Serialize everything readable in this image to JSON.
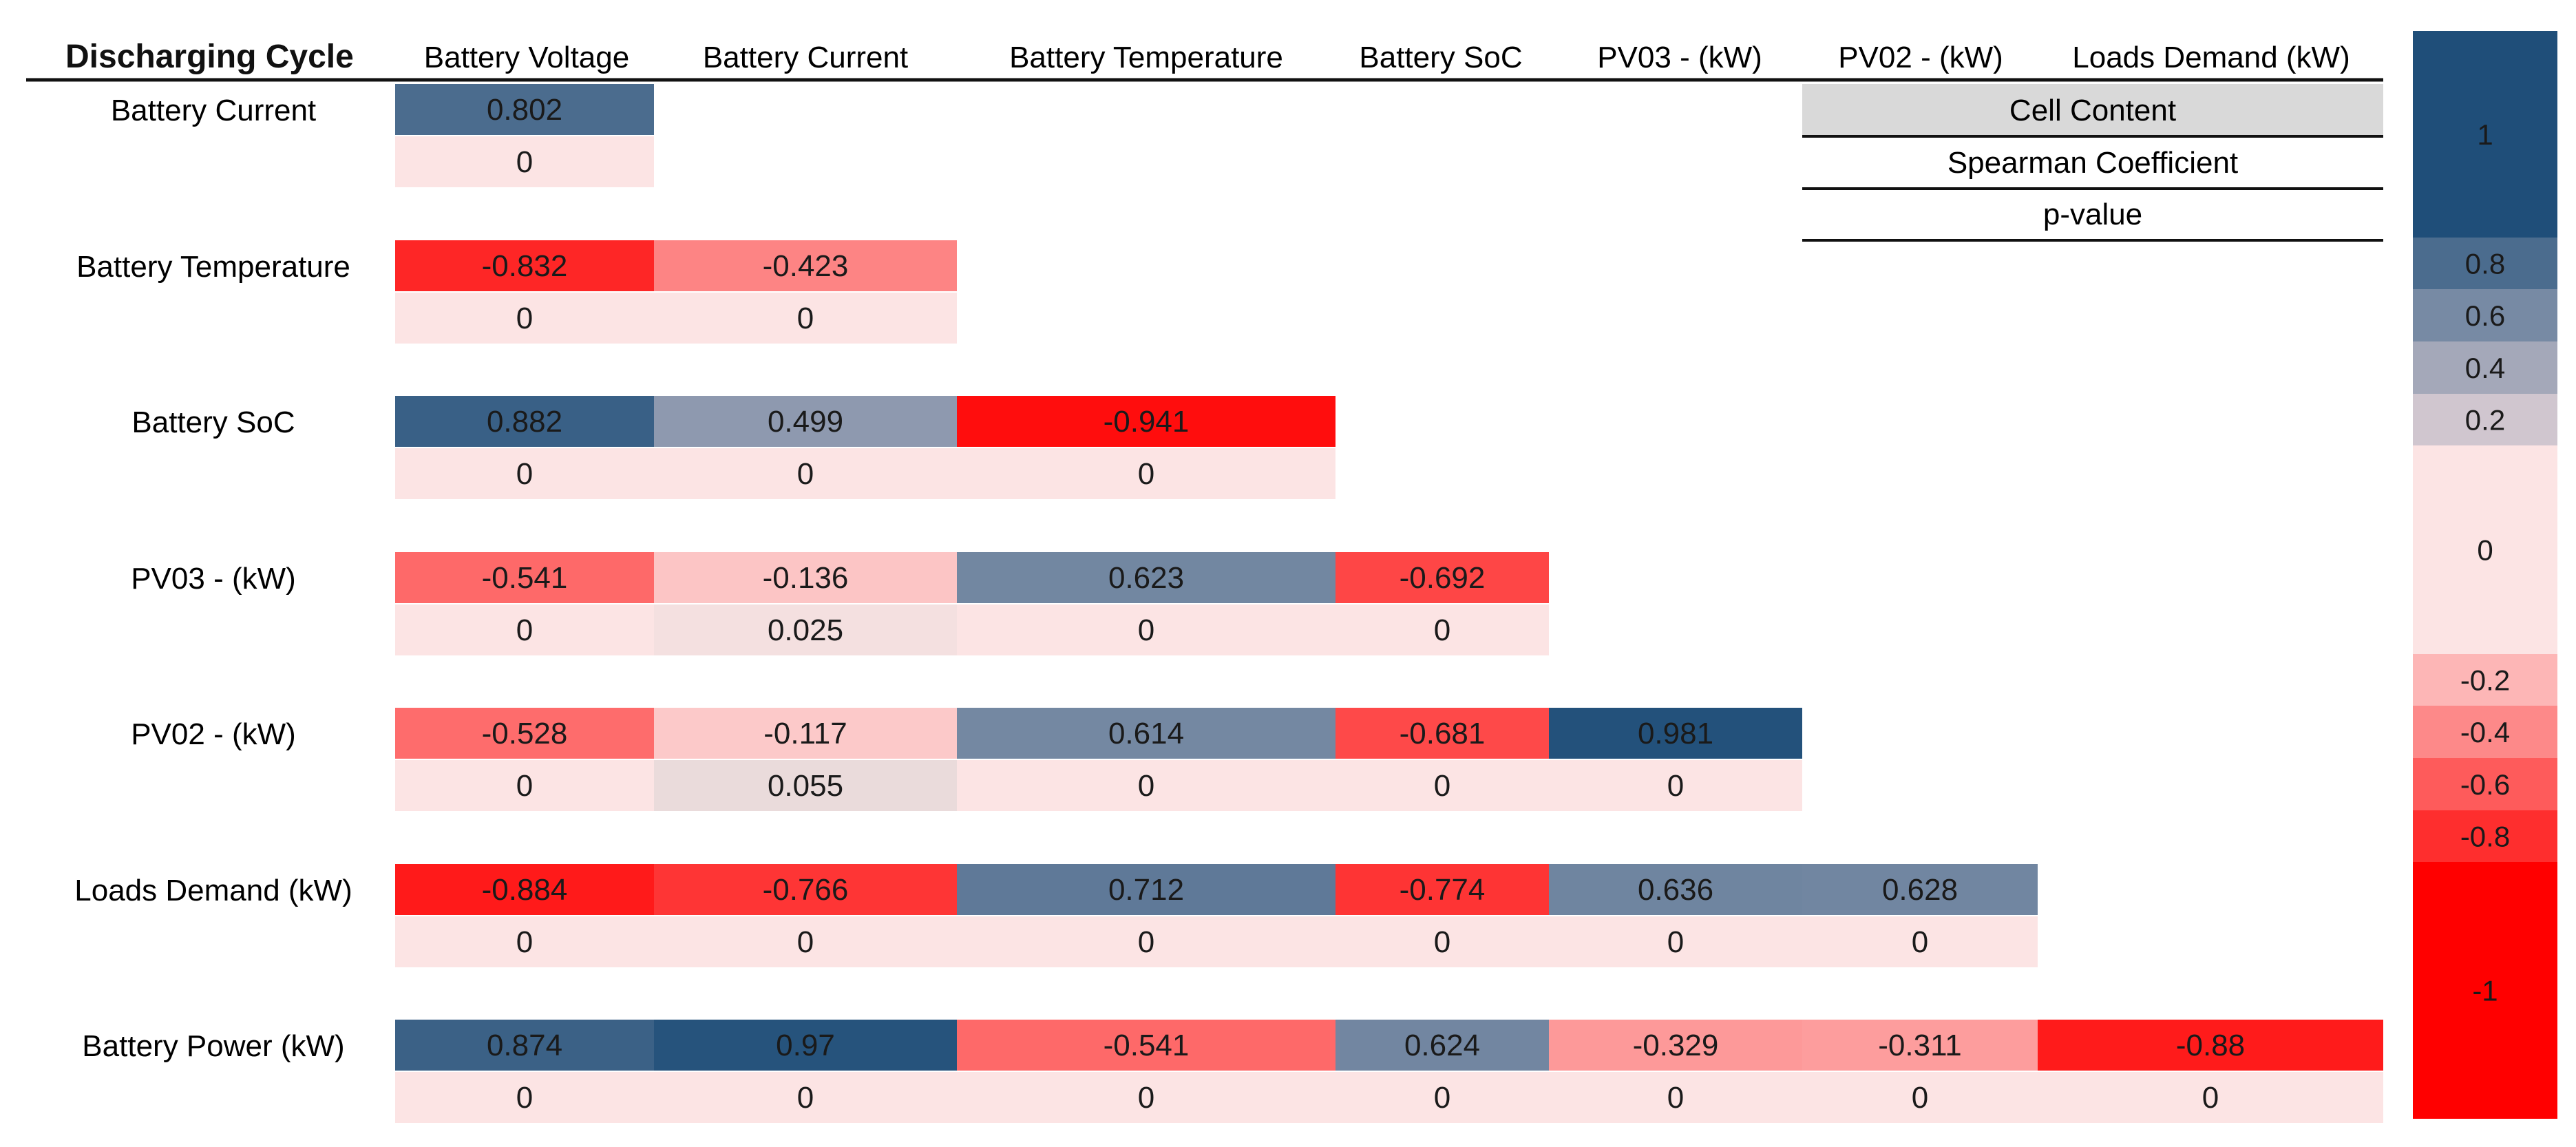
{
  "chart_data": {
    "type": "heatmap",
    "title": "Discharging Cycle",
    "columns": [
      "Battery Voltage",
      "Battery Current",
      "Battery Temperature",
      "Battery SoC",
      "PV03 - (kW)",
      "PV02 -  (kW)",
      "Loads Demand (kW)"
    ],
    "rows": [
      {
        "label": "Battery Current",
        "coefficients": [
          0.802
        ],
        "p_values": [
          "0"
        ]
      },
      {
        "label": "Battery Temperature",
        "coefficients": [
          -0.832,
          -0.423
        ],
        "p_values": [
          "0",
          "0"
        ]
      },
      {
        "label": "Battery SoC",
        "coefficients": [
          0.882,
          0.499,
          -0.941
        ],
        "p_values": [
          "0",
          "0",
          "0"
        ]
      },
      {
        "label": "PV03 - (kW)",
        "coefficients": [
          -0.541,
          -0.136,
          0.623,
          -0.692
        ],
        "p_values": [
          "0",
          "0.025",
          "0",
          "0"
        ]
      },
      {
        "label": "PV02 -  (kW)",
        "coefficients": [
          -0.528,
          -0.117,
          0.614,
          -0.681,
          0.981
        ],
        "p_values": [
          "0",
          "0.055",
          "0",
          "0",
          "0"
        ]
      },
      {
        "label": "Loads Demand (kW)",
        "coefficients": [
          -0.884,
          -0.766,
          0.712,
          -0.774,
          0.636,
          0.628
        ],
        "p_values": [
          "0",
          "0",
          "0",
          "0",
          "0",
          "0"
        ]
      },
      {
        "label": "Battery Power (kW)",
        "coefficients": [
          0.874,
          0.97,
          -0.541,
          0.624,
          -0.329,
          -0.311,
          -0.88
        ],
        "p_values": [
          "0",
          "0",
          "0",
          "0",
          "0",
          "0",
          "0"
        ]
      }
    ],
    "legend_key": {
      "header": "Cell Content",
      "line1": "Spearman Coefficient",
      "line2": "p-value",
      "position": "top-right"
    },
    "color_scale": {
      "labels": [
        "1",
        "0.8",
        "0.6",
        "0.4",
        "0.2",
        "0",
        "-0.2",
        "-0.4",
        "-0.6",
        "-0.8",
        "-1"
      ],
      "position": "right",
      "positive_color": "#1f4e79",
      "negative_color": "#ff0000",
      "neutral_color": "#fce4e4"
    }
  }
}
